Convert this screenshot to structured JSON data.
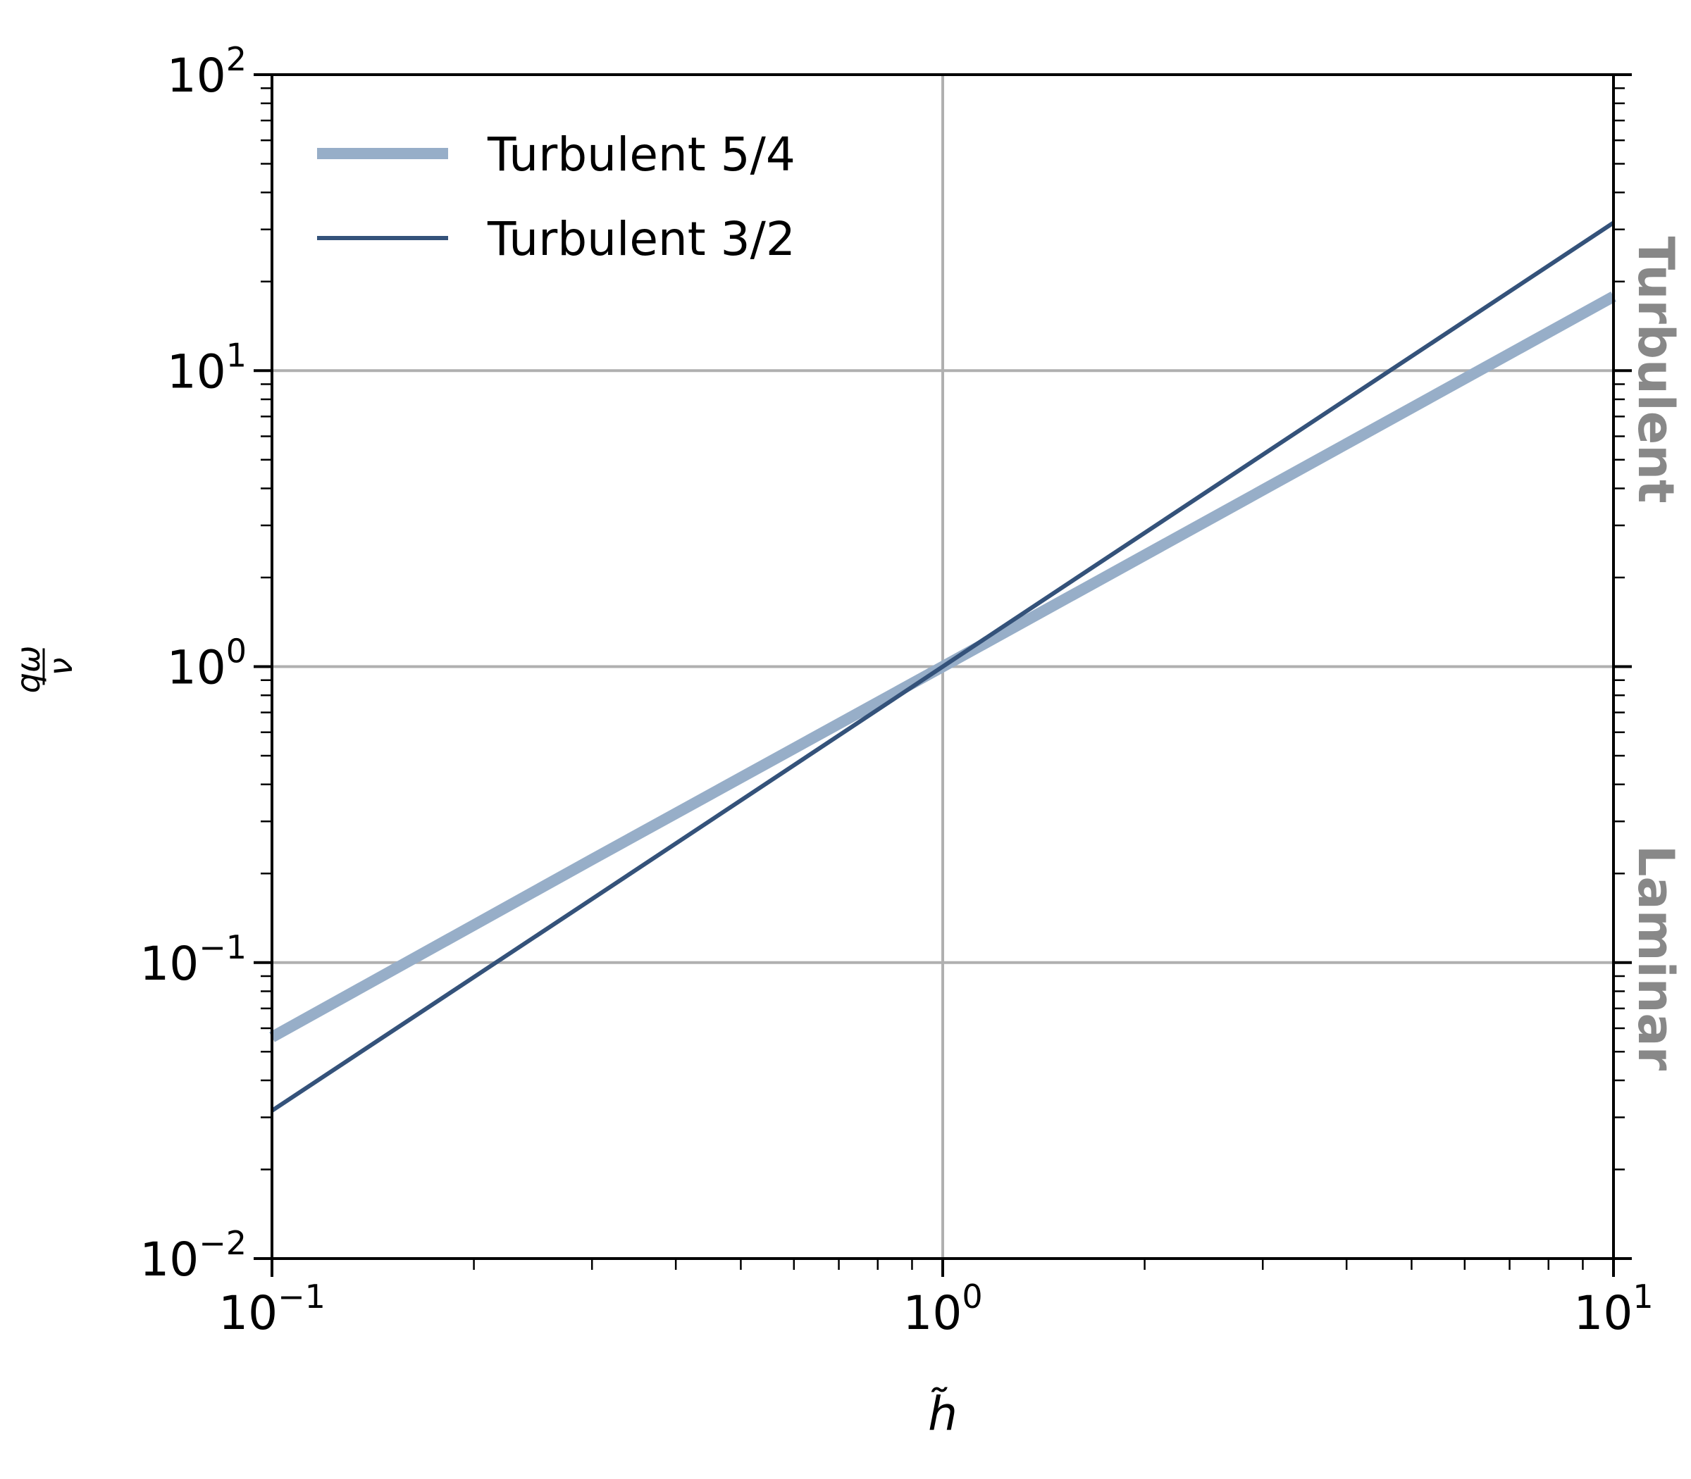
{
  "chart_data": {
    "type": "line",
    "title": "",
    "x_scale": "log",
    "y_scale": "log",
    "xlim": [
      0.1,
      10
    ],
    "ylim": [
      0.01,
      100
    ],
    "grid": true,
    "legend_position": "top-left",
    "xlabel": "h̃",
    "ylabel": {
      "numerator": "qω",
      "denominator": "ν"
    },
    "x_ticks": [
      {
        "value": 0.1,
        "base": "10",
        "exp": "−1"
      },
      {
        "value": 1,
        "base": "10",
        "exp": "0"
      },
      {
        "value": 10,
        "base": "10",
        "exp": "1"
      }
    ],
    "y_ticks": [
      {
        "value": 0.01,
        "base": "10",
        "exp": "−2"
      },
      {
        "value": 0.1,
        "base": "10",
        "exp": "−1"
      },
      {
        "value": 1,
        "base": "10",
        "exp": "0"
      },
      {
        "value": 10,
        "base": "10",
        "exp": "1"
      },
      {
        "value": 100,
        "base": "10",
        "exp": "2"
      }
    ],
    "series": [
      {
        "name": "Turbulent 5/4",
        "color": "#97aec8",
        "style": "thick",
        "x": [
          0.1,
          0.3,
          1,
          3,
          10
        ],
        "y": [
          0.056,
          0.223,
          1,
          3.95,
          17.8
        ]
      },
      {
        "name": "Turbulent 3/2",
        "color": "#34527a",
        "style": "thin",
        "x": [
          0.1,
          0.3,
          1,
          3,
          10
        ],
        "y": [
          0.0316,
          0.164,
          1,
          5.2,
          31.6
        ]
      }
    ],
    "annotations": [
      {
        "text": "Turbulent",
        "region": "right-upper",
        "color": "#888888"
      },
      {
        "text": "Laminar",
        "region": "right-lower",
        "color": "#888888"
      }
    ]
  }
}
